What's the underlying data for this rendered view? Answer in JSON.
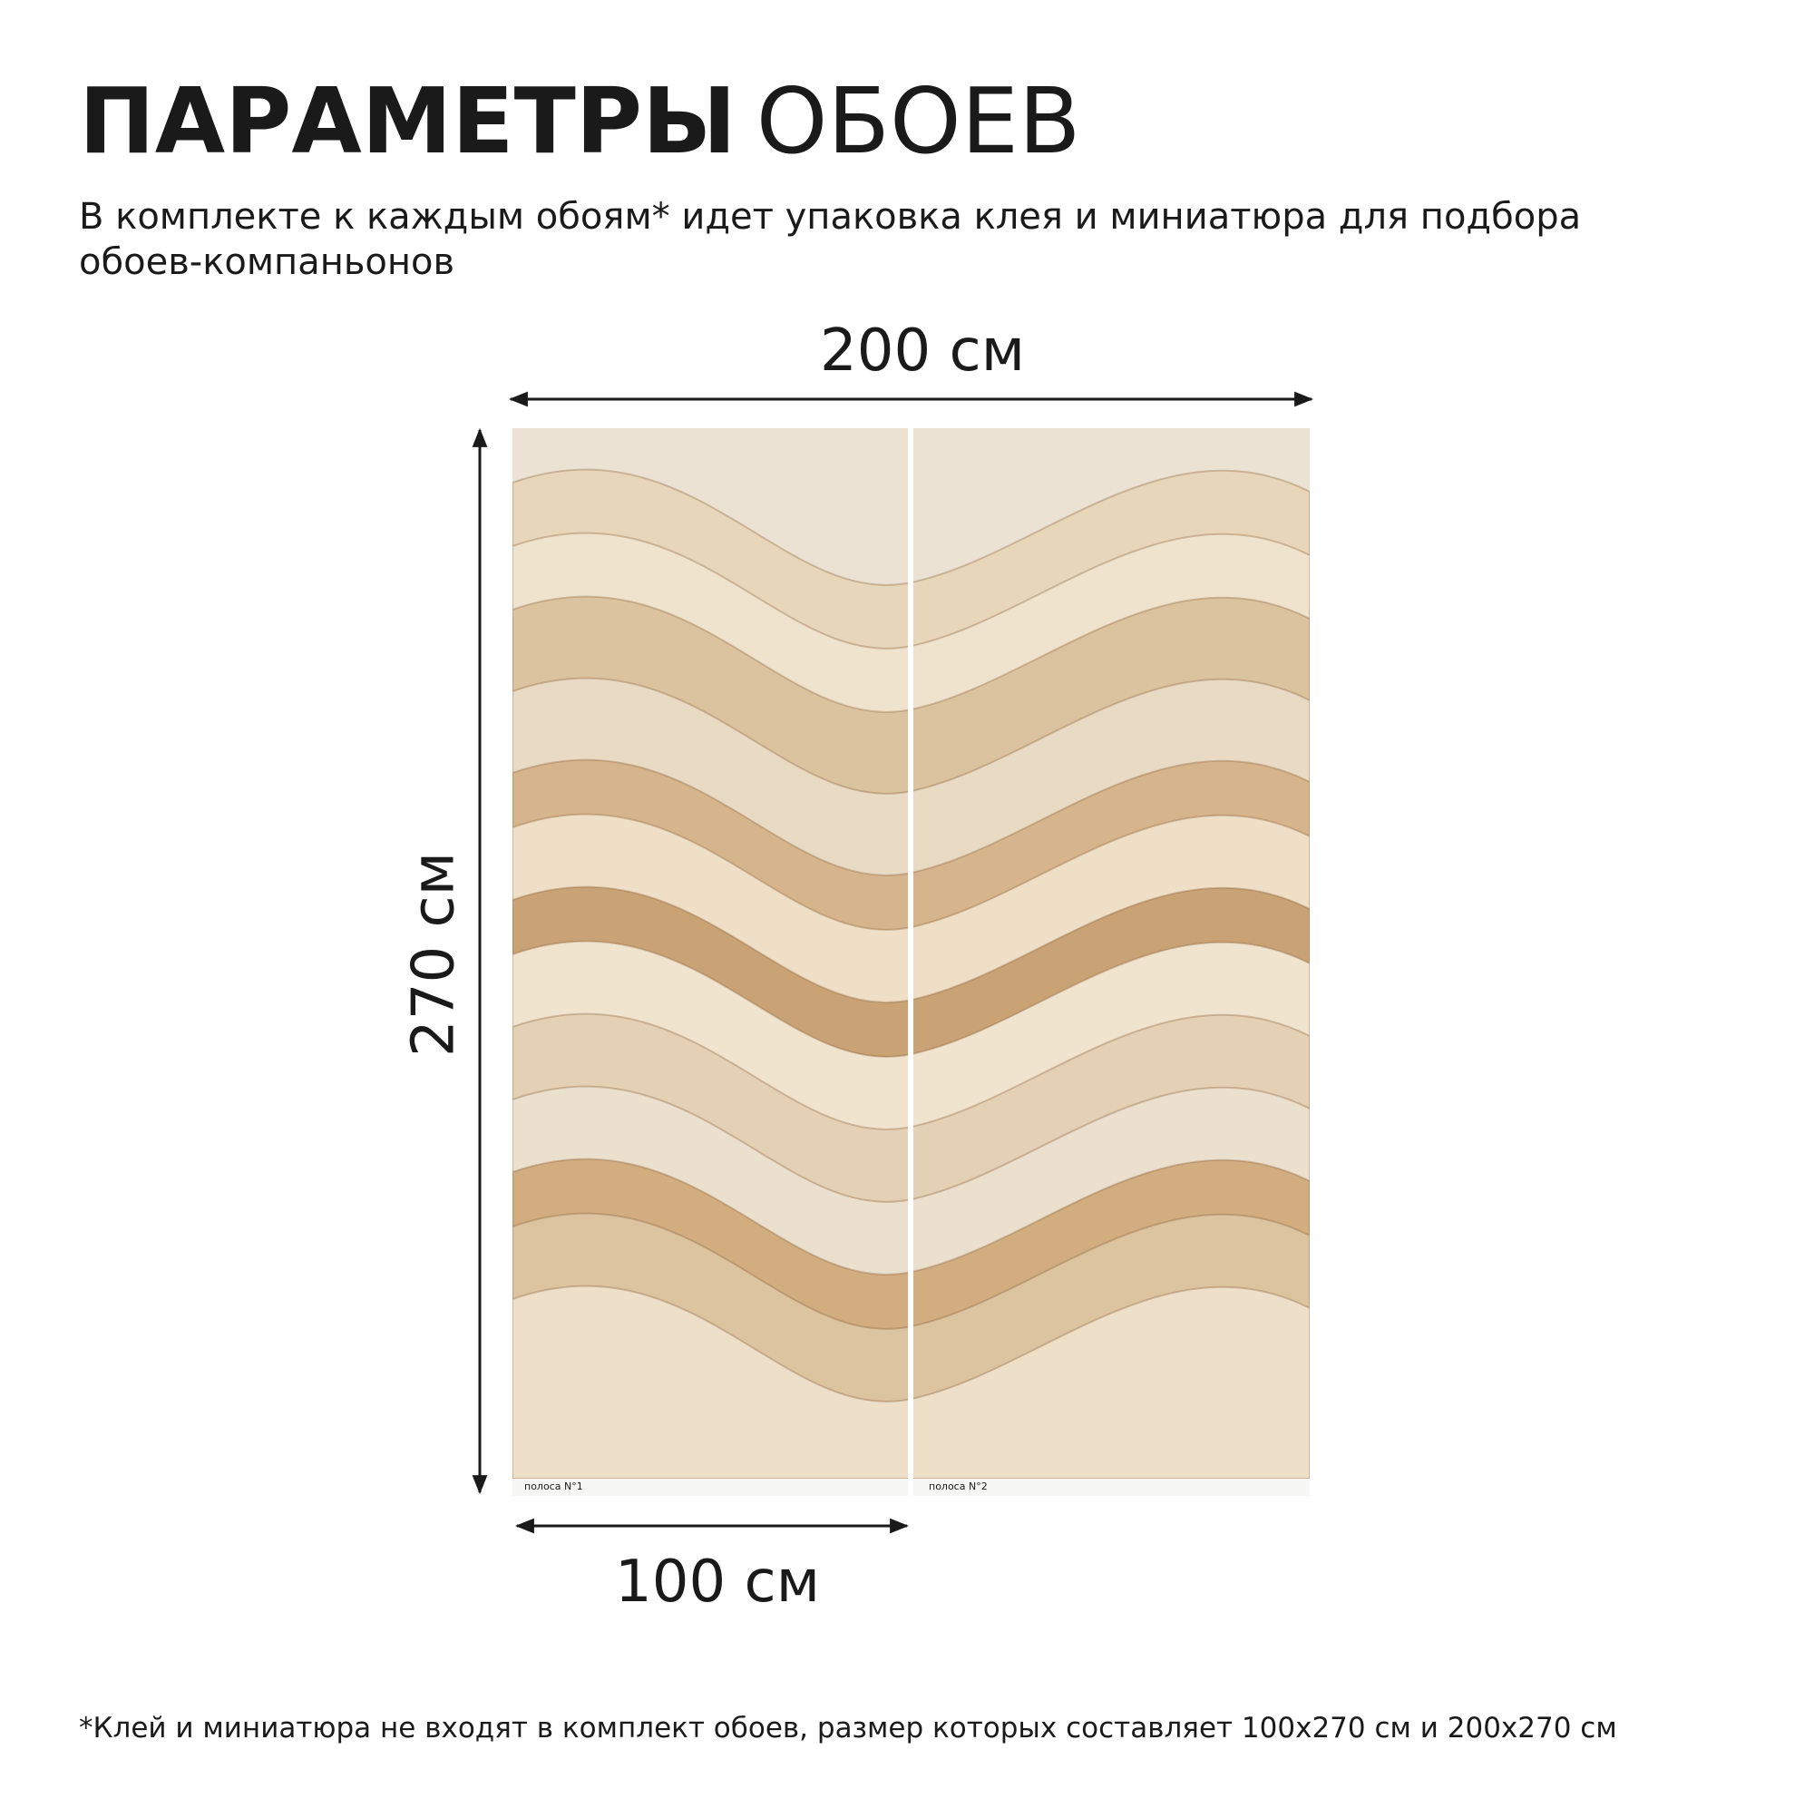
{
  "header": {
    "title_bold": "ПАРАМЕТРЫ",
    "title_regular": "ОБОЕВ",
    "subtitle_line1": "В комплекте к каждым обоям* идет упаковка клея и миниатюра для подбора",
    "subtitle_line2": "обоев-компаньонов"
  },
  "dimensions": {
    "total_width": "200 см",
    "height": "270 см",
    "strip_width": "100 см"
  },
  "strips": [
    {
      "label": "полоса N°1"
    },
    {
      "label": "полоса N°2"
    }
  ],
  "footnote": "*Клей и миниатюра не входят в комплект обоев, размер которых составляет 100x270 см и 200x270 см"
}
